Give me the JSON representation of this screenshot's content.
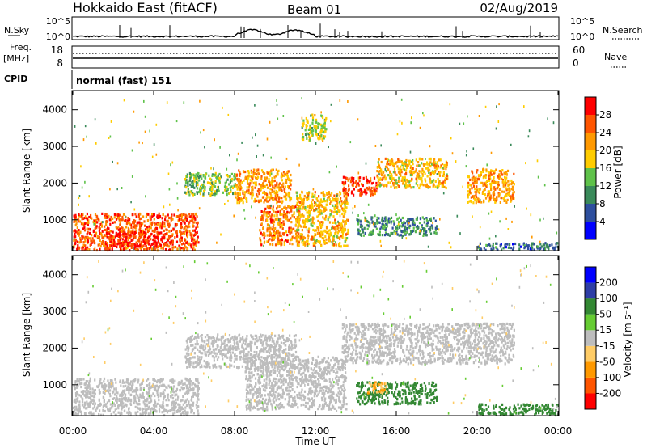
{
  "header": {
    "title": "Hokkaido East (fitACF)",
    "beam": "Beam 01",
    "date": "02/Aug/2019"
  },
  "nsky_panel": {
    "label": "N.Sky",
    "right_label": "N.Search",
    "left_ticks": [
      "10^5",
      "10^0"
    ],
    "right_ticks": [
      "10^5",
      "10^0"
    ]
  },
  "freq_panel": {
    "label_line1": "Freq.",
    "label_line2": "[MHz]",
    "left_ticks": [
      "18",
      "8"
    ],
    "right_ticks": [
      "60",
      "0"
    ],
    "right_label": "Nave"
  },
  "cpid_panel": {
    "label": "CPID",
    "mode_text": "normal (fast) 151"
  },
  "colors": {
    "power": [
      "#0000ff",
      "#2e4f9e",
      "#3a8a5a",
      "#5fc24a",
      "#ffcc00",
      "#ff9900",
      "#ff5500",
      "#ff0000"
    ],
    "velocity": [
      "#ff0000",
      "#ff5500",
      "#ff9900",
      "#ffcc66",
      "#bdbdbd",
      "#66cc33",
      "#338833",
      "#2e3ea6",
      "#0000ff"
    ]
  },
  "chart_data": [
    {
      "type": "heatmap",
      "ylabel": "Slant Range [km]",
      "yticks": [
        "1000",
        "2000",
        "3000",
        "4000"
      ],
      "ylim": [
        180,
        4500
      ],
      "xlim": [
        "00:00",
        "24:00"
      ],
      "colorbar": {
        "label": "Power [dB]",
        "range": [
          0,
          32
        ],
        "ticks": [
          "4",
          "8",
          "12",
          "16",
          "20",
          "24",
          "28"
        ]
      },
      "echo_regions": [
        {
          "t_start": 0.0,
          "t_end": 6.2,
          "range_low": 200,
          "range_high": 1200,
          "power_db": 26
        },
        {
          "t_start": 1.5,
          "t_end": 4.5,
          "range_low": 300,
          "range_high": 700,
          "power_db": 30
        },
        {
          "t_start": 5.5,
          "t_end": 8.0,
          "range_low": 1700,
          "range_high": 2300,
          "power_db": 14
        },
        {
          "t_start": 8.0,
          "t_end": 10.8,
          "range_low": 1500,
          "range_high": 2400,
          "power_db": 22
        },
        {
          "t_start": 9.2,
          "t_end": 11.2,
          "range_low": 350,
          "range_high": 1400,
          "power_db": 24
        },
        {
          "t_start": 11.0,
          "t_end": 13.6,
          "range_low": 300,
          "range_high": 1800,
          "power_db": 20
        },
        {
          "t_start": 11.3,
          "t_end": 12.5,
          "range_low": 3200,
          "range_high": 3900,
          "power_db": 16
        },
        {
          "t_start": 13.3,
          "t_end": 15.0,
          "range_low": 1700,
          "range_high": 2200,
          "power_db": 28
        },
        {
          "t_start": 15.0,
          "t_end": 18.5,
          "range_low": 1900,
          "range_high": 2700,
          "power_db": 20
        },
        {
          "t_start": 14.0,
          "t_end": 18.0,
          "range_low": 600,
          "range_high": 1100,
          "power_db": 10
        },
        {
          "t_start": 19.5,
          "t_end": 21.8,
          "range_low": 1500,
          "range_high": 2400,
          "power_db": 22
        },
        {
          "t_start": 20.0,
          "t_end": 24.0,
          "range_low": 200,
          "range_high": 400,
          "power_db": 8
        }
      ]
    },
    {
      "type": "heatmap",
      "ylabel": "Slant Range [km]",
      "xlabel": "Time UT",
      "yticks": [
        "1000",
        "2000",
        "3000",
        "4000"
      ],
      "xticks": [
        "00:00",
        "04:00",
        "08:00",
        "12:00",
        "16:00",
        "20:00",
        "00:00"
      ],
      "ylim": [
        180,
        4500
      ],
      "xlim": [
        "00:00",
        "24:00"
      ],
      "colorbar": {
        "label": "Velocity [m s⁻¹]",
        "ticks": [
          "200",
          "100",
          "50",
          "15",
          "-15",
          "-50",
          "-100",
          "-200"
        ]
      },
      "echo_regions": [
        {
          "t_start": 0.0,
          "t_end": 6.2,
          "range_low": 200,
          "range_high": 1200,
          "velocity_ms": 0
        },
        {
          "t_start": 5.5,
          "t_end": 11.0,
          "range_low": 1500,
          "range_high": 2400,
          "velocity_ms": 0
        },
        {
          "t_start": 8.5,
          "t_end": 13.5,
          "range_low": 350,
          "range_high": 1800,
          "velocity_ms": 0
        },
        {
          "t_start": 13.3,
          "t_end": 21.8,
          "range_low": 1600,
          "range_high": 2700,
          "velocity_ms": 0
        },
        {
          "t_start": 14.0,
          "t_end": 18.0,
          "range_low": 500,
          "range_high": 1100,
          "velocity_ms": 60
        },
        {
          "t_start": 14.5,
          "t_end": 15.5,
          "range_low": 800,
          "range_high": 1100,
          "velocity_ms": -50
        },
        {
          "t_start": 20.0,
          "t_end": 24.0,
          "range_low": 200,
          "range_high": 500,
          "velocity_ms": 60
        }
      ]
    }
  ]
}
